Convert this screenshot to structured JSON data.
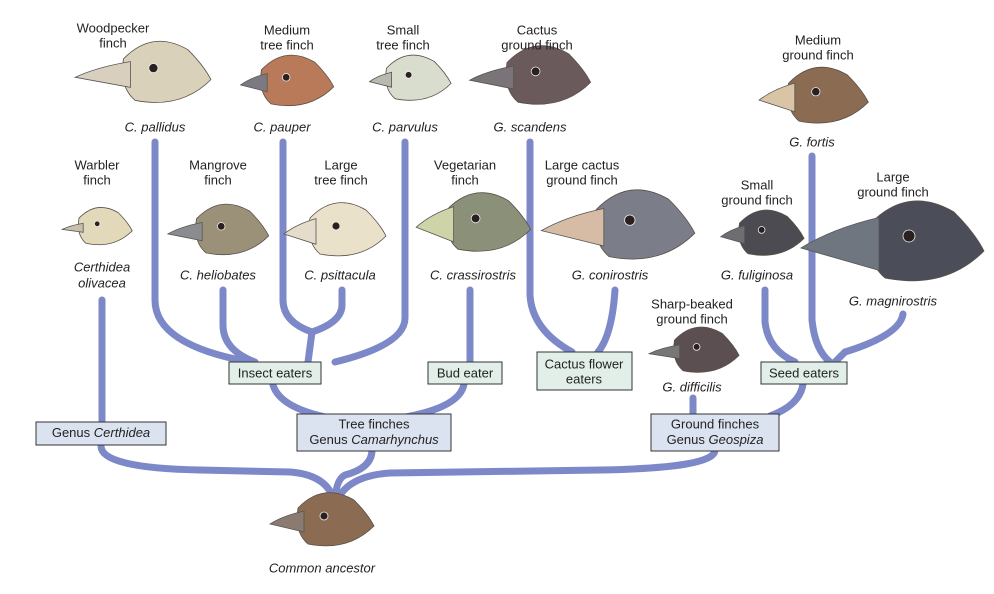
{
  "finches": [
    {
      "common": [
        "Woodpecker",
        "finch"
      ],
      "species": [
        "C. pallidus"
      ]
    },
    {
      "common": [
        "Medium",
        "tree finch"
      ],
      "species": [
        "C. pauper"
      ]
    },
    {
      "common": [
        "Small",
        "tree finch"
      ],
      "species": [
        "C. parvulus"
      ]
    },
    {
      "common": [
        "Cactus",
        "ground finch"
      ],
      "species": [
        "G. scandens"
      ]
    },
    {
      "common": [
        "Medium",
        "ground finch"
      ],
      "species": [
        "G. fortis"
      ]
    },
    {
      "common": [
        "Warbler",
        "finch"
      ],
      "species": [
        "Certhidea",
        "olivacea"
      ]
    },
    {
      "common": [
        "Mangrove",
        "finch"
      ],
      "species": [
        "C. heliobates"
      ]
    },
    {
      "common": [
        "Large",
        "tree finch"
      ],
      "species": [
        "C. psittacula"
      ]
    },
    {
      "common": [
        "Vegetarian",
        "finch"
      ],
      "species": [
        "C. crassirostris"
      ]
    },
    {
      "common": [
        "Large cactus",
        "ground finch"
      ],
      "species": [
        "G. conirostris"
      ]
    },
    {
      "common": [
        "Small",
        "ground finch"
      ],
      "species": [
        "G. fuliginosa"
      ]
    },
    {
      "common": [
        "Large",
        "ground finch"
      ],
      "species": [
        "G. magnirostris"
      ]
    },
    {
      "common": [
        "Sharp-beaked",
        "ground finch"
      ],
      "species": [
        "G. difficilis"
      ]
    },
    {
      "common": [],
      "species": [
        "Common ancestor"
      ]
    }
  ],
  "groups": {
    "insect_eaters": "Insect eaters",
    "bud_eater": "Bud eater",
    "cactus_flower_eaters": [
      "Cactus flower",
      "eaters"
    ],
    "seed_eaters": "Seed eaters",
    "certhidea": {
      "prefix": "Genus",
      "genus": "Certhidea"
    },
    "tree_finches": {
      "line1": "Tree finches",
      "prefix": "Genus",
      "genus": "Camarhynchus"
    },
    "ground_finches": {
      "line1": "Ground finches",
      "prefix": "Genus",
      "genus": "Geospiza"
    }
  }
}
